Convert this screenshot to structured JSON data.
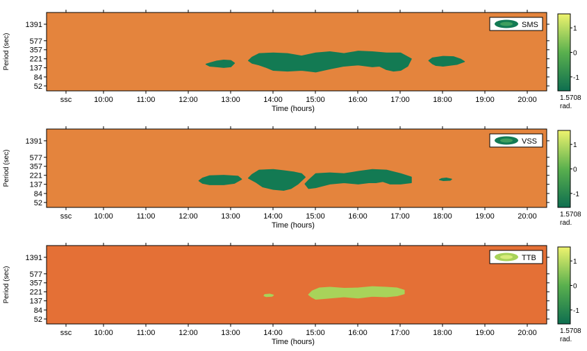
{
  "colors": {
    "background": "#E4843D",
    "background_ttb": "#E47036",
    "region_dark": "#137A53",
    "region_light": "#A8D35A",
    "colorbar_top": "#EEF36E",
    "colorbar_mid": "#5AB04E",
    "colorbar_bottom": "#0E6E4F"
  },
  "chart_data": [
    {
      "type": "heatmap",
      "legend_label": "SMS",
      "legend_swatch": "dark",
      "region_color": "dark",
      "bg": "background",
      "ylabel": "Period (sec)",
      "xlabel": "Time (hours)",
      "y_ticks": [
        "1391",
        "577",
        "357",
        "221",
        "137",
        "84",
        "52"
      ],
      "x_ticks": [
        "ssc",
        "10:00",
        "11:00",
        "12:00",
        "13:00",
        "14:00",
        "15:00",
        "16:00",
        "17:00",
        "18:00",
        "19:00",
        "20:00"
      ],
      "colorbar_ticks": [
        "1",
        "0",
        "-1"
      ],
      "colorbar_value": "1.5708",
      "colorbar_unit": "rad.",
      "regions": [
        {
          "x": [
            "12:30",
            "12:40",
            "12:50",
            "13:00",
            "13:05",
            "13:00",
            "12:50",
            "12:40",
            "12:30",
            "12:25"
          ],
          "y": [
            175,
            195,
            205,
            200,
            175,
            145,
            140,
            145,
            150,
            165
          ]
        },
        {
          "x": [
            "13:30",
            "13:40",
            "14:00",
            "14:20",
            "14:40",
            "15:00",
            "15:20",
            "15:40",
            "16:00",
            "16:20",
            "16:40",
            "17:00",
            "17:15",
            "17:10",
            "17:00",
            "16:50",
            "16:40",
            "16:30",
            "16:20",
            "16:00",
            "15:40",
            "15:20",
            "15:00",
            "14:50",
            "14:40",
            "14:20",
            "14:00",
            "13:50",
            "13:40",
            "13:30",
            "13:25"
          ],
          "y": [
            240,
            290,
            300,
            290,
            255,
            300,
            320,
            290,
            330,
            320,
            300,
            300,
            220,
            150,
            120,
            115,
            125,
            150,
            145,
            160,
            150,
            130,
            110,
            115,
            120,
            115,
            120,
            140,
            160,
            175,
            200
          ]
        },
        {
          "x": [
            "17:45",
            "18:00",
            "18:15",
            "18:25",
            "18:30",
            "18:20",
            "18:00",
            "17:50",
            "17:45",
            "17:40"
          ],
          "y": [
            230,
            250,
            245,
            215,
            190,
            165,
            150,
            155,
            170,
            200
          ]
        }
      ]
    },
    {
      "type": "heatmap",
      "legend_label": "VSS",
      "legend_swatch": "dark",
      "region_color": "dark",
      "bg": "background",
      "ylabel": "Period (sec)",
      "xlabel": "Time (hours)",
      "y_ticks": [
        "1391",
        "577",
        "357",
        "221",
        "137",
        "84",
        "52"
      ],
      "x_ticks": [
        "ssc",
        "10:00",
        "11:00",
        "12:00",
        "13:00",
        "14:00",
        "15:00",
        "16:00",
        "17:00",
        "18:00",
        "19:00",
        "20:00"
      ],
      "colorbar_ticks": [
        "1",
        "0",
        "-1"
      ],
      "colorbar_value": "1.5708",
      "colorbar_unit": "rad.",
      "regions": [
        {
          "x": [
            "12:20",
            "12:30",
            "12:50",
            "13:10",
            "13:15",
            "13:05",
            "12:50",
            "12:30",
            "12:20",
            "12:15"
          ],
          "y": [
            190,
            215,
            220,
            210,
            180,
            145,
            135,
            135,
            145,
            165
          ]
        },
        {
          "x": [
            "13:30",
            "13:40",
            "14:00",
            "14:15",
            "14:30",
            "14:40",
            "14:45",
            "14:35",
            "14:25",
            "14:15",
            "14:00",
            "13:45",
            "13:35",
            "13:25"
          ],
          "y": [
            230,
            290,
            300,
            280,
            260,
            240,
            200,
            140,
            110,
            100,
            105,
            120,
            155,
            190
          ]
        },
        {
          "x": [
            "14:50",
            "15:00",
            "15:20",
            "15:40",
            "16:00",
            "16:20",
            "16:40",
            "17:00",
            "17:15",
            "17:15",
            "17:00",
            "16:45",
            "16:35",
            "16:25",
            "16:15",
            "16:00",
            "15:40",
            "15:20",
            "15:00",
            "14:50",
            "14:45"
          ],
          "y": [
            170,
            240,
            250,
            240,
            270,
            300,
            290,
            240,
            200,
            150,
            140,
            140,
            160,
            150,
            150,
            140,
            150,
            140,
            115,
            110,
            140
          ]
        },
        {
          "x": [
            "17:58",
            "18:05",
            "18:12",
            "18:10",
            "18:00",
            "17:55"
          ],
          "y": [
            185,
            190,
            180,
            170,
            168,
            175
          ]
        }
      ]
    },
    {
      "type": "heatmap",
      "legend_label": "TTB",
      "legend_swatch": "light",
      "region_color": "light",
      "bg": "background_ttb",
      "ylabel": "Period (sec)",
      "xlabel": "Time (hours)",
      "y_ticks": [
        "1391",
        "577",
        "357",
        "221",
        "137",
        "84",
        "52"
      ],
      "x_ticks": [
        "ssc",
        "10:00",
        "11:00",
        "12:00",
        "13:00",
        "14:00",
        "15:00",
        "16:00",
        "17:00",
        "18:00",
        "19:00",
        "20:00"
      ],
      "colorbar_ticks": [
        "1",
        "0",
        "-1"
      ],
      "colorbar_value": "1.5708",
      "colorbar_unit": "rad.",
      "regions": [
        {
          "x": [
            "13:48",
            "13:55",
            "14:00",
            "13:58",
            "13:50",
            "13:47"
          ],
          "y": [
            190,
            195,
            185,
            175,
            172,
            180
          ]
        },
        {
          "x": [
            "14:55",
            "15:05",
            "15:20",
            "15:40",
            "16:00",
            "16:20",
            "16:40",
            "16:55",
            "17:05",
            "17:05",
            "16:55",
            "16:40",
            "16:20",
            "16:00",
            "15:40",
            "15:20",
            "15:00",
            "14:55",
            "14:50"
          ],
          "y": [
            230,
            270,
            280,
            265,
            270,
            290,
            280,
            270,
            240,
            200,
            180,
            170,
            175,
            160,
            170,
            160,
            150,
            165,
            190
          ]
        }
      ]
    }
  ]
}
